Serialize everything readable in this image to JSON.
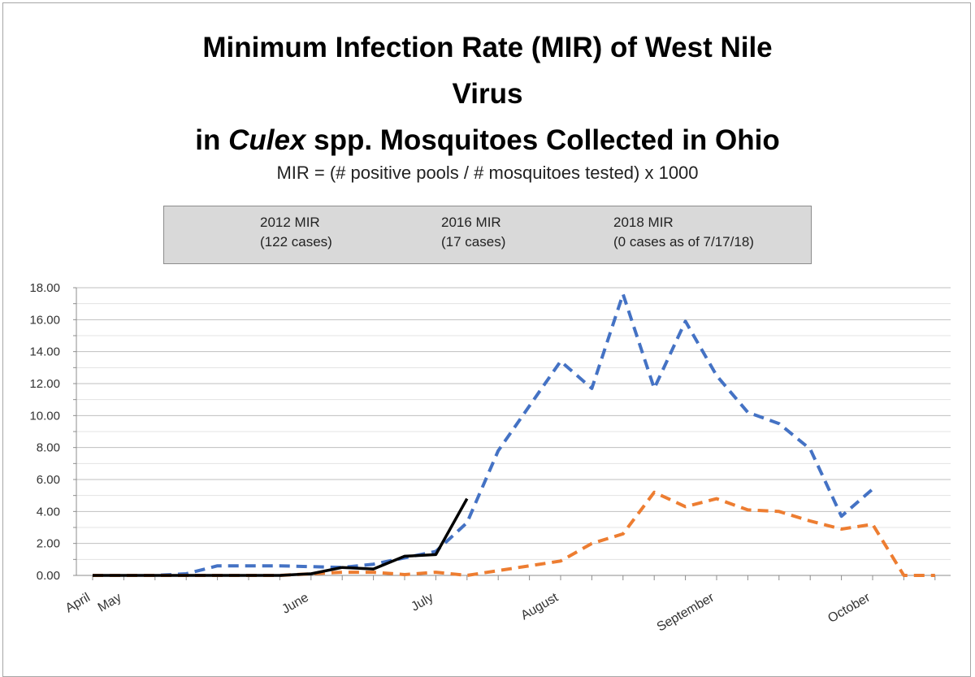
{
  "chart_data": {
    "type": "line",
    "title_line1": "Minimum Infection Rate (MIR) of West Nile",
    "title_line2": "Virus",
    "title_line3_pre": "in ",
    "title_line3_italic": "Culex",
    "title_line3_post": " spp. Mosquitoes Collected in Ohio",
    "subtitle": "MIR = (# positive pools / # mosquitoes tested) x 1000",
    "ylim": [
      0,
      18
    ],
    "yticks": [
      "0.00",
      "2.00",
      "4.00",
      "6.00",
      "8.00",
      "10.00",
      "12.00",
      "14.00",
      "16.00",
      "18.00"
    ],
    "ytick_values": [
      0,
      2,
      4,
      6,
      8,
      10,
      12,
      14,
      16,
      18
    ],
    "x_slots": 28,
    "month_labels": [
      {
        "label": "April",
        "slot": 0
      },
      {
        "label": "May",
        "slot": 1
      },
      {
        "label": "June",
        "slot": 7
      },
      {
        "label": "July",
        "slot": 11
      },
      {
        "label": "August",
        "slot": 15
      },
      {
        "label": "September",
        "slot": 20
      },
      {
        "label": "October",
        "slot": 25
      }
    ],
    "series": [
      {
        "name": "2012 MIR",
        "note": "(122 cases)",
        "color": "#4472c4",
        "style": "dashed",
        "values": [
          0,
          0,
          0,
          0.1,
          0.6,
          0.6,
          0.6,
          0.55,
          0.5,
          0.7,
          1.1,
          1.5,
          3.3,
          7.8,
          10.6,
          13.4,
          11.7,
          17.6,
          11.7,
          15.9,
          12.5,
          10.2,
          9.5,
          7.9,
          3.7,
          5.4,
          null,
          null
        ]
      },
      {
        "name": "2016 MIR",
        "note": "(17 cases)",
        "color": "#ed7d31",
        "style": "dashed",
        "values": [
          0,
          0,
          0,
          0,
          0,
          0,
          0,
          0.1,
          0.2,
          0.2,
          0.05,
          0.2,
          0,
          0.3,
          0.6,
          0.9,
          2.0,
          2.6,
          5.2,
          4.3,
          4.8,
          4.1,
          4.0,
          3.4,
          2.9,
          3.2,
          0,
          0
        ]
      },
      {
        "name": "2018 MIR",
        "note": "(0 cases as of 7/17/18)",
        "color": "#000000",
        "style": "solid",
        "values": [
          0,
          0,
          0,
          0,
          0,
          0,
          0,
          0.1,
          0.5,
          0.4,
          1.2,
          1.3,
          4.8,
          null,
          null,
          null,
          null,
          null,
          null,
          null,
          null,
          null,
          null,
          null,
          null,
          null,
          null,
          null
        ]
      }
    ]
  }
}
